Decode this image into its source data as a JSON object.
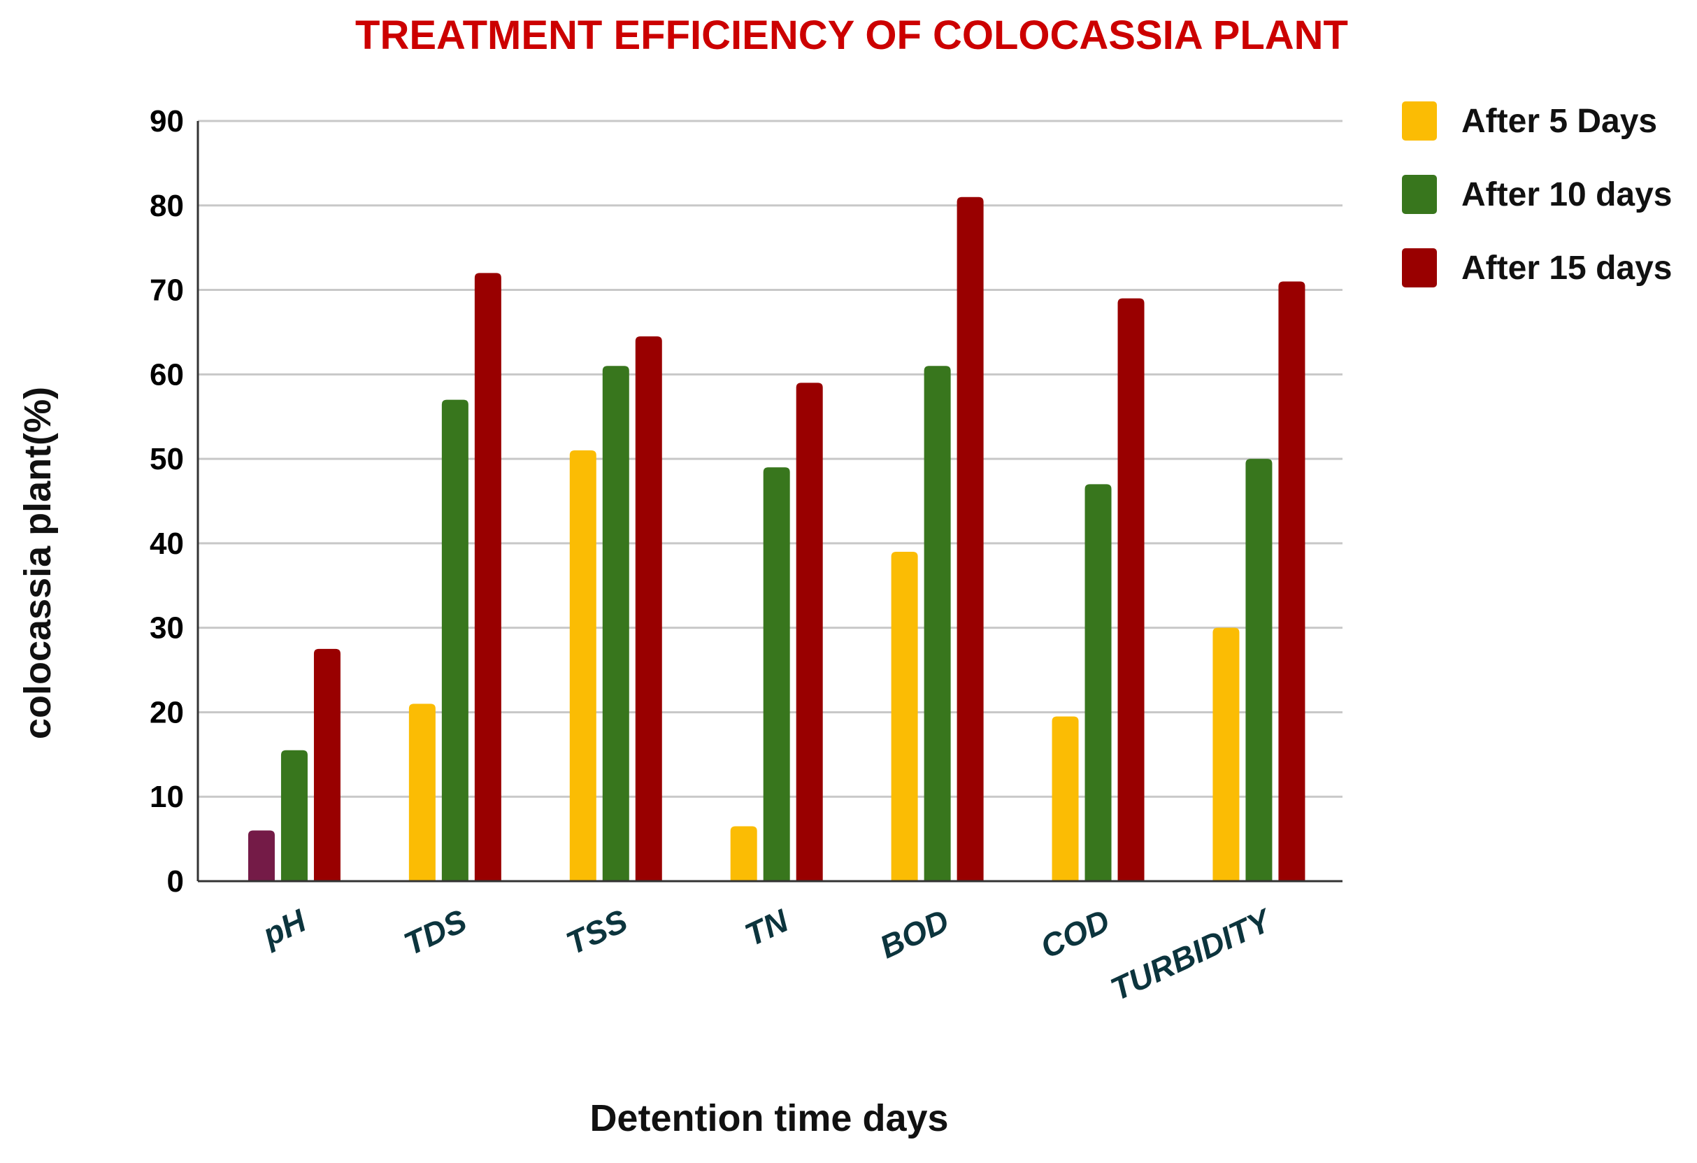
{
  "chart_data": {
    "type": "bar",
    "title": "TREATMENT EFFICIENCY OF COLOCASSIA PLANT",
    "xlabel": "Detention time days",
    "ylabel": "colocassia plant(%)",
    "ylim": [
      0,
      90
    ],
    "yticks": [
      0,
      10,
      20,
      30,
      40,
      50,
      60,
      70,
      80,
      90
    ],
    "grid": true,
    "legend_position": "top-right",
    "categories": [
      "pH",
      "TDS",
      "TSS",
      "TN",
      "BOD",
      "COD",
      "TURBIDITY"
    ],
    "series": [
      {
        "name": "After 5 Days",
        "color": "#fbbc04",
        "values": [
          6,
          21,
          51,
          6.5,
          39,
          19.5,
          30
        ]
      },
      {
        "name": "After 10 days",
        "color": "#38761d",
        "values": [
          15.5,
          57,
          61,
          49,
          61,
          47,
          50
        ]
      },
      {
        "name": "After 15 days",
        "color": "#990000",
        "values": [
          27.5,
          72,
          64.5,
          59,
          81,
          69,
          71
        ]
      }
    ],
    "point_color_overrides": [
      {
        "series": 0,
        "category": 0,
        "color": "#741b47"
      }
    ],
    "colors": {
      "title": "#cc0000",
      "category_labels": "#0c343d",
      "gridlines": "#c8c8c8",
      "axis": "#333333"
    }
  }
}
